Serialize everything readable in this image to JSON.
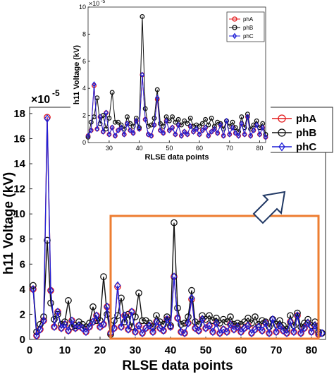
{
  "chart_data": [
    {
      "type": "line",
      "xlabel": "RLSE data points",
      "ylabel": "h11 Voltage (kV)",
      "exponent_base": "×10",
      "exponent_power": "-5",
      "xlim": [
        0,
        84
      ],
      "ylim": [
        0,
        18.5
      ],
      "x_ticks": [
        0,
        10,
        20,
        30,
        40,
        50,
        60,
        70,
        80
      ],
      "y_ticks": [
        0,
        2,
        4,
        6,
        8,
        10,
        12,
        14,
        16,
        18
      ],
      "legend_placement": "right",
      "highlight": "orange rectangle spans x 23–82",
      "x": [
        1,
        2,
        3,
        4,
        5,
        6,
        7,
        8,
        9,
        10,
        11,
        12,
        13,
        14,
        15,
        16,
        17,
        18,
        19,
        20,
        21,
        22,
        23,
        24,
        25,
        26,
        27,
        28,
        29,
        30,
        31,
        32,
        33,
        34,
        35,
        36,
        37,
        38,
        39,
        40,
        41,
        42,
        43,
        44,
        45,
        46,
        47,
        48,
        49,
        50,
        51,
        52,
        53,
        54,
        55,
        56,
        57,
        58,
        59,
        60,
        61,
        62,
        63,
        64,
        65,
        66,
        67,
        68,
        69,
        70,
        71,
        72,
        73,
        74,
        75,
        76,
        77,
        78,
        79,
        80,
        81,
        82,
        83
      ],
      "series": [
        {
          "name": "phA",
          "color": "#e31a1c",
          "marker": "circle",
          "values": [
            4.0,
            0.3,
            0.8,
            1.5,
            17.7,
            3.9,
            1.0,
            2.2,
            0.9,
            1.2,
            0.7,
            1.5,
            0.9,
            1.1,
            0.9,
            0.6,
            1.0,
            1.4,
            1.9,
            1.0,
            1.2,
            2.6,
            0.5,
            0.9,
            4.2,
            1.0,
            1.9,
            0.8,
            2.2,
            0.6,
            1.1,
            0.5,
            0.9,
            1.1,
            0.6,
            1.4,
            0.9,
            0.7,
            1.6,
            1.0,
            5.0,
            1.7,
            0.6,
            0.5,
            1.3,
            3.2,
            0.9,
            0.7,
            1.6,
            0.9,
            1.1,
            0.6,
            1.3,
            0.5,
            0.8,
            0.6,
            1.2,
            0.8,
            1.0,
            0.6,
            0.9,
            1.1,
            0.5,
            0.8,
            1.0,
            0.7,
            1.3,
            0.5,
            1.6,
            0.6,
            1.1,
            0.7,
            0.5,
            1.4,
            0.6,
            1.9,
            0.5,
            0.9,
            1.3,
            0.6,
            1.1,
            0.4,
            0.5
          ]
        },
        {
          "name": "phB",
          "color": "#111111",
          "marker": "circle",
          "values": [
            4.3,
            0.6,
            1.2,
            1.8,
            7.9,
            2.9,
            1.6,
            2.0,
            1.2,
            1.4,
            3.1,
            1.0,
            1.1,
            1.4,
            1.2,
            1.0,
            1.3,
            2.6,
            1.5,
            1.5,
            5.0,
            2.0,
            0.4,
            1.5,
            1.9,
            3.3,
            1.4,
            2.0,
            1.0,
            1.8,
            3.7,
            1.5,
            1.5,
            1.3,
            1.0,
            1.9,
            1.4,
            1.2,
            1.8,
            1.1,
            9.3,
            2.5,
            1.2,
            1.3,
            1.8,
            3.9,
            1.4,
            1.2,
            1.9,
            1.6,
            1.9,
            1.5,
            1.7,
            1.3,
            1.6,
            1.4,
            1.8,
            1.2,
            1.3,
            1.2,
            1.4,
            1.7,
            1.3,
            1.8,
            1.2,
            1.5,
            1.4,
            1.0,
            1.6,
            1.2,
            1.5,
            1.1,
            0.8,
            1.9,
            1.1,
            2.1,
            1.0,
            1.3,
            1.6,
            1.1,
            1.4,
            0.6,
            0.5
          ]
        },
        {
          "name": "phC",
          "color": "#1f1fd6",
          "marker": "diamond",
          "values": [
            4.0,
            0.3,
            0.8,
            1.5,
            17.6,
            3.9,
            1.0,
            2.2,
            0.9,
            1.2,
            0.7,
            1.5,
            0.9,
            1.1,
            0.9,
            0.6,
            1.0,
            1.4,
            1.9,
            1.0,
            1.2,
            2.6,
            0.5,
            0.9,
            4.3,
            1.0,
            1.9,
            0.8,
            2.2,
            0.6,
            1.1,
            0.5,
            0.9,
            1.1,
            0.6,
            1.4,
            0.9,
            0.7,
            1.6,
            1.0,
            5.0,
            1.7,
            0.6,
            0.5,
            1.3,
            3.3,
            0.9,
            0.7,
            1.6,
            0.9,
            1.1,
            0.6,
            1.3,
            0.5,
            0.8,
            0.6,
            1.2,
            0.8,
            1.0,
            0.6,
            0.9,
            1.1,
            0.5,
            0.8,
            1.0,
            0.7,
            1.3,
            0.5,
            1.6,
            0.6,
            1.1,
            0.7,
            0.5,
            1.4,
            0.6,
            1.9,
            0.5,
            0.9,
            1.3,
            0.6,
            1.1,
            0.4,
            0.5
          ]
        }
      ]
    },
    {
      "type": "line",
      "xlabel": "RLSE data points",
      "ylabel": "h11 Voltage (kV)",
      "exponent_base": "×10",
      "exponent_power": "-5",
      "xlim": [
        23,
        82
      ],
      "ylim": [
        0,
        10
      ],
      "x_ticks": [
        30,
        40,
        50,
        60,
        70,
        80
      ],
      "y_ticks": [
        0,
        2,
        4,
        6,
        8,
        10
      ],
      "legend_placement": "top-right",
      "series_names": [
        "phA",
        "phB",
        "phC"
      ],
      "note": "zoomed view of data points 23–82 of the main chart"
    }
  ]
}
